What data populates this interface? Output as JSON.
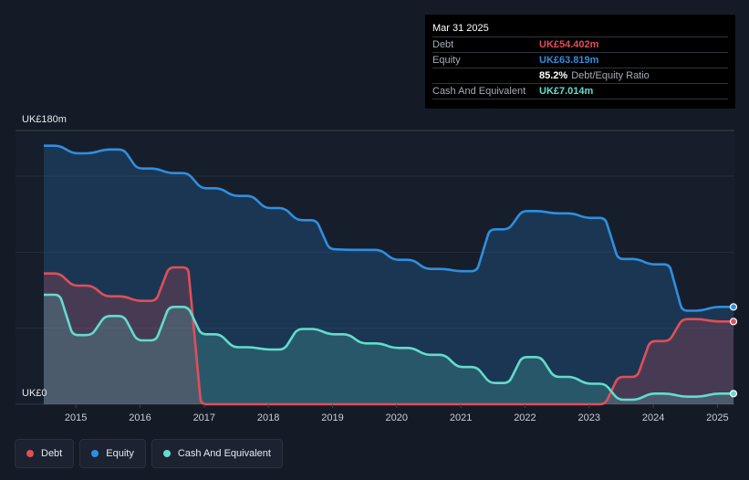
{
  "tooltip": {
    "date": "Mar 31 2025",
    "rows": [
      {
        "label": "Debt",
        "value": "UK£54.402m",
        "color": "#e24e59"
      },
      {
        "label": "Equity",
        "value": "UK£63.819m",
        "color": "#2e8fe0"
      },
      {
        "label": "",
        "value": "85.2%",
        "extra": "Debt/Equity Ratio",
        "color": "#ffffff"
      },
      {
        "label": "Cash And Equivalent",
        "value": "UK£7.014m",
        "color": "#62dccd"
      }
    ]
  },
  "legend": [
    {
      "label": "Debt",
      "color": "#e24e59"
    },
    {
      "label": "Equity",
      "color": "#2e8fe0"
    },
    {
      "label": "Cash And Equivalent",
      "color": "#62dccd"
    }
  ],
  "chart_data": {
    "type": "area",
    "y_top_label": "UK£180m",
    "y_bottom_label": "UK£0",
    "ylim": [
      0,
      180
    ],
    "xlim": [
      2014.5,
      2025.25
    ],
    "x_ticks": [
      "2015",
      "2016",
      "2017",
      "2018",
      "2019",
      "2020",
      "2021",
      "2022",
      "2023",
      "2024",
      "2025"
    ],
    "series": [
      {
        "name": "Equity",
        "color": "#2e8fe0",
        "points": [
          [
            2014.5,
            170
          ],
          [
            2014.75,
            170
          ],
          [
            2014.95,
            165
          ],
          [
            2015.25,
            165
          ],
          [
            2015.45,
            167.5
          ],
          [
            2015.75,
            167.5
          ],
          [
            2015.95,
            155
          ],
          [
            2016.25,
            155
          ],
          [
            2016.45,
            152
          ],
          [
            2016.75,
            152
          ],
          [
            2016.95,
            142
          ],
          [
            2017.25,
            142
          ],
          [
            2017.45,
            137
          ],
          [
            2017.75,
            137
          ],
          [
            2017.95,
            129
          ],
          [
            2018.25,
            129
          ],
          [
            2018.45,
            121
          ],
          [
            2018.75,
            121
          ],
          [
            2018.95,
            102
          ],
          [
            2019.25,
            101.5
          ],
          [
            2019.75,
            101.5
          ],
          [
            2019.95,
            95
          ],
          [
            2020.25,
            95
          ],
          [
            2020.45,
            89
          ],
          [
            2020.75,
            89
          ],
          [
            2020.95,
            87.5
          ],
          [
            2021.25,
            87.5
          ],
          [
            2021.45,
            115
          ],
          [
            2021.75,
            115
          ],
          [
            2021.95,
            127
          ],
          [
            2022.25,
            127
          ],
          [
            2022.45,
            125.5
          ],
          [
            2022.75,
            125.5
          ],
          [
            2022.95,
            122.5
          ],
          [
            2023.25,
            122.5
          ],
          [
            2023.45,
            95.5
          ],
          [
            2023.75,
            95.5
          ],
          [
            2023.95,
            92
          ],
          [
            2024.25,
            92
          ],
          [
            2024.45,
            61.5
          ],
          [
            2024.75,
            61.5
          ],
          [
            2024.95,
            64
          ],
          [
            2025.25,
            64
          ]
        ]
      },
      {
        "name": "Debt",
        "color": "#e24e59",
        "points": [
          [
            2014.5,
            86
          ],
          [
            2014.75,
            86
          ],
          [
            2014.95,
            78
          ],
          [
            2015.25,
            78
          ],
          [
            2015.45,
            71
          ],
          [
            2015.75,
            71
          ],
          [
            2015.95,
            68
          ],
          [
            2016.25,
            68
          ],
          [
            2016.45,
            90
          ],
          [
            2016.75,
            90
          ],
          [
            2016.95,
            0
          ],
          [
            2023.25,
            0
          ],
          [
            2023.45,
            18
          ],
          [
            2023.75,
            18
          ],
          [
            2023.95,
            41.5
          ],
          [
            2024.25,
            41.5
          ],
          [
            2024.45,
            56
          ],
          [
            2024.75,
            56
          ],
          [
            2024.95,
            54.4
          ],
          [
            2025.25,
            54.4
          ]
        ]
      },
      {
        "name": "Cash And Equivalent",
        "color": "#62dccd",
        "points": [
          [
            2014.5,
            72
          ],
          [
            2014.75,
            72
          ],
          [
            2014.95,
            45.5
          ],
          [
            2015.25,
            45.5
          ],
          [
            2015.45,
            58
          ],
          [
            2015.75,
            58
          ],
          [
            2015.95,
            42
          ],
          [
            2016.25,
            42
          ],
          [
            2016.45,
            64
          ],
          [
            2016.75,
            64
          ],
          [
            2016.95,
            46
          ],
          [
            2017.25,
            46
          ],
          [
            2017.45,
            37.5
          ],
          [
            2017.75,
            37.5
          ],
          [
            2017.95,
            36
          ],
          [
            2018.25,
            36
          ],
          [
            2018.45,
            49.5
          ],
          [
            2018.75,
            49.5
          ],
          [
            2018.95,
            46
          ],
          [
            2019.25,
            46
          ],
          [
            2019.45,
            40
          ],
          [
            2019.75,
            40
          ],
          [
            2019.95,
            37
          ],
          [
            2020.25,
            37
          ],
          [
            2020.45,
            32.5
          ],
          [
            2020.75,
            32.5
          ],
          [
            2020.95,
            24.5
          ],
          [
            2021.25,
            24.5
          ],
          [
            2021.45,
            14
          ],
          [
            2021.75,
            14
          ],
          [
            2021.95,
            31
          ],
          [
            2022.25,
            31
          ],
          [
            2022.45,
            18
          ],
          [
            2022.75,
            18
          ],
          [
            2022.95,
            13.5
          ],
          [
            2023.25,
            13.5
          ],
          [
            2023.45,
            3
          ],
          [
            2023.75,
            3
          ],
          [
            2023.95,
            7
          ],
          [
            2024.25,
            7
          ],
          [
            2024.45,
            5
          ],
          [
            2024.75,
            5
          ],
          [
            2024.95,
            7
          ],
          [
            2025.25,
            7
          ]
        ]
      }
    ]
  }
}
